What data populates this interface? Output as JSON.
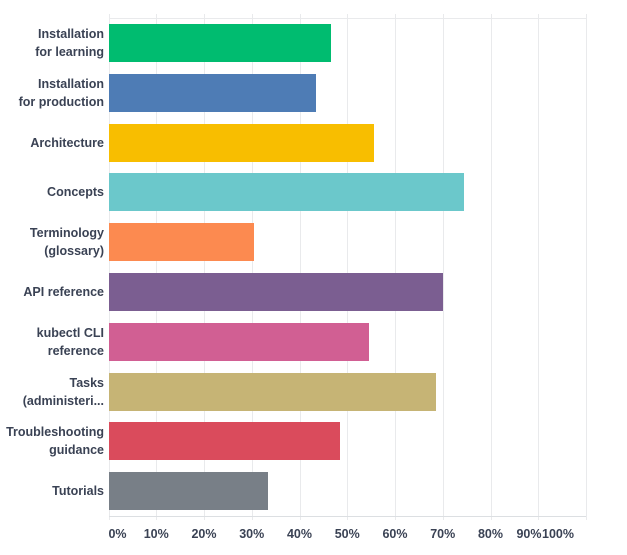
{
  "chart_data": {
    "type": "bar",
    "orientation": "horizontal",
    "title": "",
    "xlabel": "",
    "ylabel": "",
    "xlim": [
      0,
      100
    ],
    "grid": true,
    "categories": [
      "Installation for learning",
      "Installation for production",
      "Architecture",
      "Concepts",
      "Terminology (glossary)",
      "API reference",
      "kubectl CLI reference",
      "Tasks (administeri...",
      "Troubleshooting guidance",
      "Tutorials"
    ],
    "category_label_lines": [
      [
        "Installation",
        "for learning"
      ],
      [
        "Installation",
        "for production"
      ],
      [
        "Architecture"
      ],
      [
        "Concepts"
      ],
      [
        "Terminology",
        "(glossary)"
      ],
      [
        "API reference"
      ],
      [
        "kubectl CLI",
        "reference"
      ],
      [
        "Tasks",
        "(administeri..."
      ],
      [
        "Troubleshooting",
        "guidance"
      ],
      [
        "Tutorials"
      ]
    ],
    "values": [
      46.5,
      43.5,
      55.5,
      74.5,
      30.5,
      70,
      54.5,
      68.5,
      48.5,
      33.5
    ],
    "unit": "%",
    "bar_colors": [
      "#00BC70",
      "#4E7CB5",
      "#F8BE00",
      "#6BC8CB",
      "#FC8A50",
      "#7B5E91",
      "#D15F93",
      "#C6B475",
      "#DA4B5C",
      "#787F87"
    ],
    "x_tick_labels": [
      "0%",
      "10%",
      "20%",
      "30%",
      "40%",
      "50%",
      "60%",
      "70%",
      "80%",
      "90%",
      "100%"
    ],
    "legend": null,
    "text_color": "#3A4254",
    "grid_color": "#E9EAEC",
    "axis_line_color": "#DCDFE2"
  }
}
